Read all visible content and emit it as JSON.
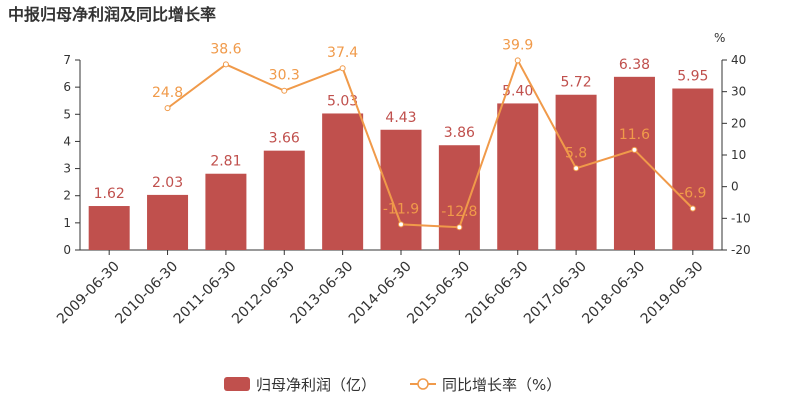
{
  "chart_data": {
    "type": "bar",
    "title": "中报归母净利润及同比增长率",
    "categories": [
      "2009-06-30",
      "2010-06-30",
      "2011-06-30",
      "2012-06-30",
      "2013-06-30",
      "2014-06-30",
      "2015-06-30",
      "2016-06-30",
      "2017-06-30",
      "2018-06-30",
      "2019-06-30"
    ],
    "series": [
      {
        "name": "归母净利润（亿）",
        "type": "bar",
        "axis": "left",
        "values": [
          1.62,
          2.03,
          2.81,
          3.66,
          5.03,
          4.43,
          3.86,
          5.4,
          5.72,
          6.38,
          5.95
        ],
        "labels": [
          "1.62",
          "2.03",
          "2.81",
          "3.66",
          "5.03",
          "4.43",
          "3.86",
          "5.40",
          "5.72",
          "6.38",
          "5.95"
        ],
        "color": "#c0504d"
      },
      {
        "name": "同比增长率（%）",
        "type": "line",
        "axis": "right",
        "values": [
          null,
          24.8,
          38.6,
          30.3,
          37.4,
          -11.9,
          -12.8,
          39.9,
          5.8,
          11.6,
          -6.9
        ],
        "labels": [
          "",
          "24.8",
          "38.6",
          "30.3",
          "37.4",
          "-11.9",
          "-12.8",
          "39.9",
          "5.8",
          "11.6",
          "-6.9"
        ],
        "color": "#f09a4a"
      }
    ],
    "y_left": {
      "min": 0,
      "max": 7,
      "ticks": [
        "0",
        "1",
        "2",
        "3",
        "4",
        "5",
        "6",
        "7"
      ]
    },
    "y_right": {
      "min": -20,
      "max": 40,
      "unit": "%",
      "ticks": [
        "-20",
        "-10",
        "0",
        "10",
        "20",
        "30",
        "40"
      ]
    },
    "grid": false,
    "legend": "bottom-center"
  }
}
